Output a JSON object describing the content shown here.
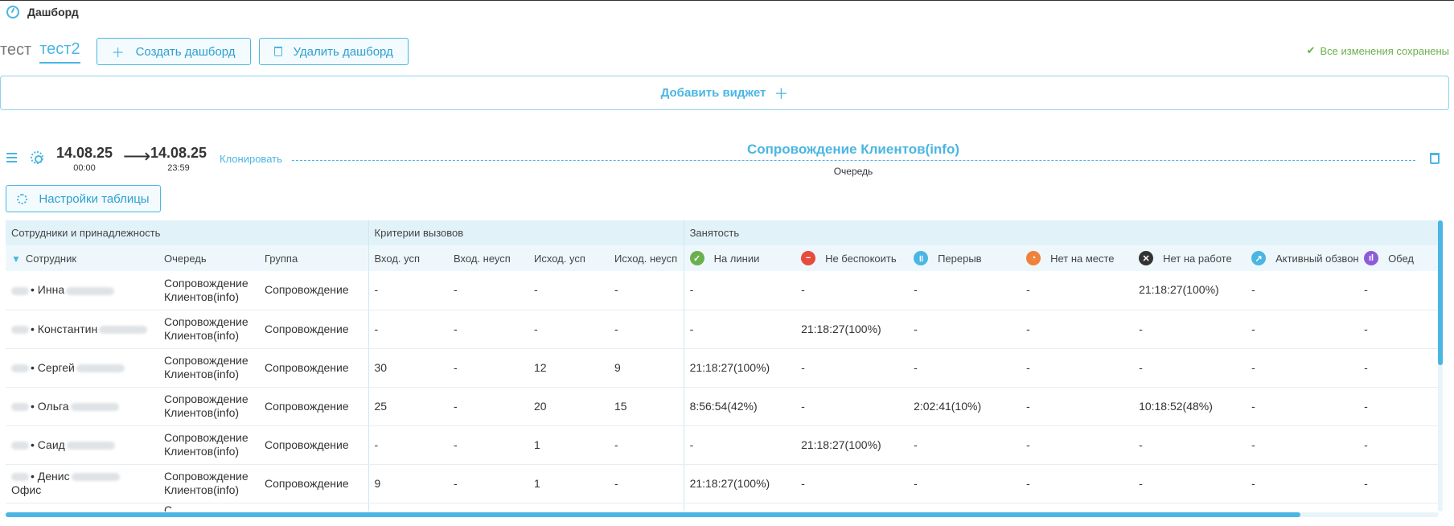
{
  "header": {
    "title": "Дашборд",
    "icon": "dashboard-icon"
  },
  "tabs": [
    {
      "label": "тест",
      "active": false
    },
    {
      "label": "тест2",
      "active": true
    }
  ],
  "toolbar": {
    "create_label": "Создать дашборд",
    "delete_label": "Удалить дашборд",
    "saved_label": "Все изменения сохранены"
  },
  "add_widget_label": "Добавить виджет",
  "widget": {
    "date_from": "14.08.25",
    "time_from": "00:00",
    "date_to": "14.08.25",
    "time_to": "23:59",
    "clone_label": "Клонировать",
    "title": "Сопровождение Клиентов(info)",
    "subtitle": "Очередь",
    "settings_label": "Настройки таблицы"
  },
  "table": {
    "groups": [
      "Сотрудники и принадлежность",
      "Критерии вызовов",
      "Занятость"
    ],
    "columns": {
      "employee": "Сотрудник",
      "queue": "Очередь",
      "group": "Группа",
      "in_ok": "Вход. усп",
      "in_fail": "Вход. неусп",
      "out_ok": "Исход. усп",
      "out_fail": "Исход. неусп",
      "online": "На линии",
      "dnd": "Не беспокоить",
      "break": "Перерыв",
      "away": "Нет на месте",
      "offwork": "Нет на работе",
      "active_dial": "Активный обзвон",
      "lunch": "Обед"
    },
    "rows": [
      {
        "name": "• Инна",
        "name2": "",
        "queue": "Сопровождение Клиентов(info)",
        "group": "Сопровождение",
        "in_ok": "-",
        "in_fail": "-",
        "out_ok": "-",
        "out_fail": "-",
        "online": "-",
        "dnd": "-",
        "break": "-",
        "away": "-",
        "offwork": "21:18:27(100%)",
        "active_dial": "-",
        "lunch": "-"
      },
      {
        "name": "• Константин",
        "name2": "",
        "queue": "Сопровождение Клиентов(info)",
        "group": "Сопровождение",
        "in_ok": "-",
        "in_fail": "-",
        "out_ok": "-",
        "out_fail": "-",
        "online": "-",
        "dnd": "21:18:27(100%)",
        "break": "-",
        "away": "-",
        "offwork": "-",
        "active_dial": "-",
        "lunch": "-"
      },
      {
        "name": "• Сергей",
        "name2": "",
        "queue": "Сопровождение Клиентов(info)",
        "group": "Сопровождение",
        "in_ok": "30",
        "in_fail": "-",
        "out_ok": "12",
        "out_fail": "9",
        "online": "21:18:27(100%)",
        "dnd": "-",
        "break": "-",
        "away": "-",
        "offwork": "-",
        "active_dial": "-",
        "lunch": "-"
      },
      {
        "name": "• Ольга",
        "name2": "",
        "queue": "Сопровождение Клиентов(info)",
        "group": "Сопровождение",
        "in_ok": "25",
        "in_fail": "-",
        "out_ok": "20",
        "out_fail": "15",
        "online": "8:56:54(42%)",
        "dnd": "-",
        "break": "2:02:41(10%)",
        "away": "-",
        "offwork": "10:18:52(48%)",
        "active_dial": "-",
        "lunch": "-"
      },
      {
        "name": "• Саид",
        "name2": "",
        "queue": "Сопровождение Клиентов(info)",
        "group": "Сопровождение",
        "in_ok": "-",
        "in_fail": "-",
        "out_ok": "1",
        "out_fail": "-",
        "online": "-",
        "dnd": "21:18:27(100%)",
        "break": "-",
        "away": "-",
        "offwork": "-",
        "active_dial": "-",
        "lunch": "-"
      },
      {
        "name": "• Денис",
        "name2": "Офис",
        "queue": "Сопровождение Клиентов(info)",
        "group": "Сопровождение",
        "in_ok": "9",
        "in_fail": "-",
        "out_ok": "1",
        "out_fail": "-",
        "online": "21:18:27(100%)",
        "dnd": "-",
        "break": "-",
        "away": "-",
        "offwork": "-",
        "active_dial": "-",
        "lunch": "-"
      }
    ],
    "partial_row_queue": "С"
  },
  "colors": {
    "accent": "#4bb6e3",
    "online": "#6ab04c",
    "dnd": "#e74c3c",
    "break": "#4bb6e3",
    "away": "#f0813a",
    "offwork": "#333333",
    "active_dial": "#4bb6e3",
    "lunch": "#8e5bd8",
    "saved": "#6ab04c"
  }
}
